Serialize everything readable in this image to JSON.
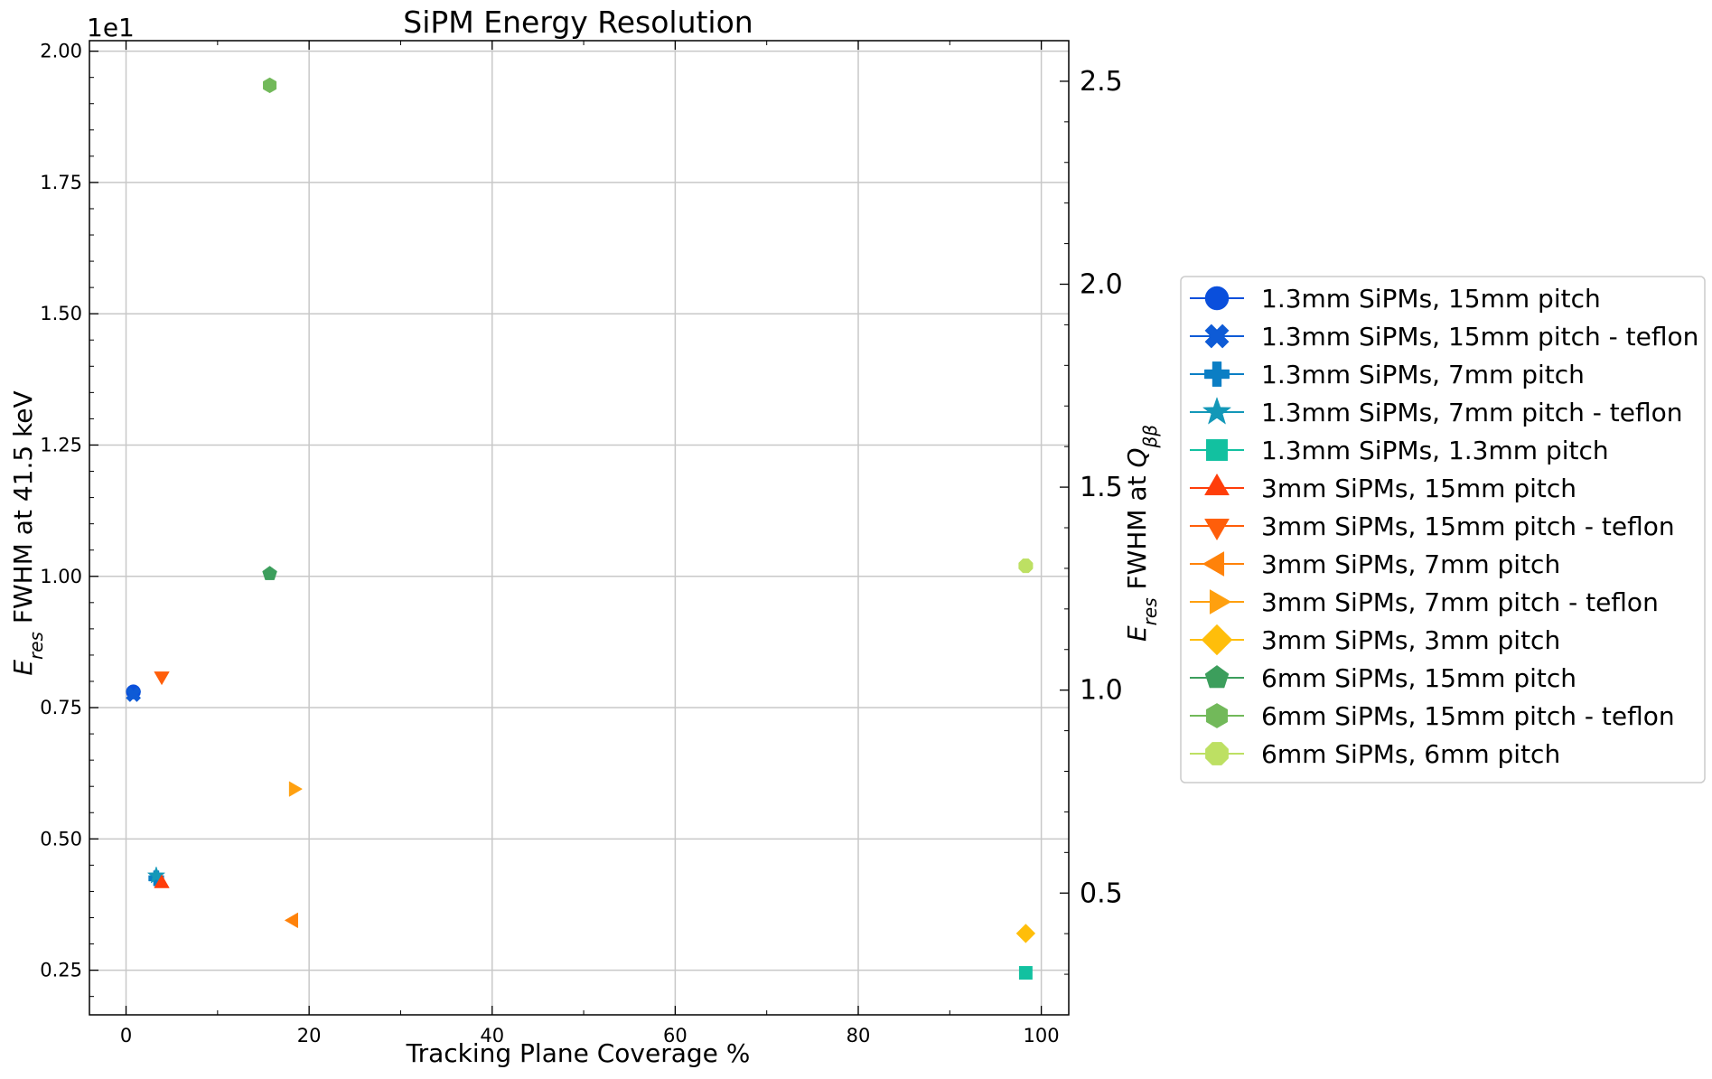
{
  "chart_data": {
    "type": "scatter",
    "title": "SiPM Energy Resolution",
    "xlabel": "Tracking Plane Coverage %",
    "ylabel_left": {
      "main": "E",
      "sub": "res",
      "rest": " FWHM at 41.5 keV"
    },
    "ylabel_right": {
      "main": "E",
      "sub": "res",
      "rest": " FWHM at ",
      "q": "Q",
      "qsub": "ββ"
    },
    "y_offset_text": "1e1",
    "xlim": [
      -4,
      103
    ],
    "ylim_left": [
      1.65,
      20.2
    ],
    "ylim_right": [
      0.2,
      2.6
    ],
    "grid": true,
    "legend_position": "right",
    "x_ticks": [
      {
        "value": 0,
        "label": "0"
      },
      {
        "value": 20,
        "label": "20"
      },
      {
        "value": 40,
        "label": "40"
      },
      {
        "value": 60,
        "label": "60"
      },
      {
        "value": 80,
        "label": "80"
      },
      {
        "value": 100,
        "label": "100"
      }
    ],
    "y_ticks_left": [
      {
        "value": 2.5,
        "label": "0.25"
      },
      {
        "value": 5.0,
        "label": "0.50"
      },
      {
        "value": 7.5,
        "label": "0.75"
      },
      {
        "value": 10.0,
        "label": "1.00"
      },
      {
        "value": 12.5,
        "label": "1.25"
      },
      {
        "value": 15.0,
        "label": "1.50"
      },
      {
        "value": 17.5,
        "label": "1.75"
      },
      {
        "value": 20.0,
        "label": "2.00"
      }
    ],
    "y_ticks_right": [
      {
        "value": 0.5,
        "label": "0.5"
      },
      {
        "value": 1.0,
        "label": "1.0"
      },
      {
        "value": 1.5,
        "label": "1.5"
      },
      {
        "value": 2.0,
        "label": "2.0"
      },
      {
        "value": 2.5,
        "label": "2.5"
      }
    ],
    "series": [
      {
        "name": "1.3mm SiPMs, 15mm pitch",
        "color": "#0a4fdc",
        "marker": "circle",
        "x": 0.8,
        "y": 7.8
      },
      {
        "name": "1.3mm SiPMs, 15mm pitch - teflon",
        "color": "#0e5bd6",
        "marker": "x-filled",
        "x": 0.8,
        "y": 7.75
      },
      {
        "name": "1.3mm SiPMs, 7mm pitch",
        "color": "#0b7ec4",
        "marker": "plus-filled",
        "x": 3.3,
        "y": 4.25
      },
      {
        "name": "1.3mm SiPMs, 7mm pitch - teflon",
        "color": "#1398b8",
        "marker": "star",
        "x": 3.3,
        "y": 4.3
      },
      {
        "name": "1.3mm SiPMs, 1.3mm pitch",
        "color": "#12c1a0",
        "marker": "square",
        "x": 98.3,
        "y": 2.45
      },
      {
        "name": "3mm SiPMs, 15mm pitch",
        "color": "#ff3d0a",
        "marker": "triangle-up",
        "x": 3.9,
        "y": 4.15
      },
      {
        "name": "3mm SiPMs, 15mm pitch - teflon",
        "color": "#ff5e0a",
        "marker": "triangle-down",
        "x": 3.9,
        "y": 8.1
      },
      {
        "name": "3mm SiPMs, 7mm pitch",
        "color": "#ff820a",
        "marker": "triangle-left",
        "x": 18.3,
        "y": 3.45
      },
      {
        "name": "3mm SiPMs, 7mm pitch - teflon",
        "color": "#ffa00f",
        "marker": "triangle-right",
        "x": 18.3,
        "y": 5.95
      },
      {
        "name": "3mm SiPMs, 3mm pitch",
        "color": "#ffbe0a",
        "marker": "diamond",
        "x": 98.3,
        "y": 3.2
      },
      {
        "name": "6mm SiPMs, 15mm pitch",
        "color": "#3c9e5c",
        "marker": "pentagon",
        "x": 15.7,
        "y": 10.05
      },
      {
        "name": "6mm SiPMs, 15mm pitch - teflon",
        "color": "#72b95a",
        "marker": "hexagon",
        "x": 15.7,
        "y": 19.35
      },
      {
        "name": "6mm SiPMs, 6mm pitch",
        "color": "#bde063",
        "marker": "octagon",
        "x": 98.3,
        "y": 10.2
      }
    ]
  }
}
